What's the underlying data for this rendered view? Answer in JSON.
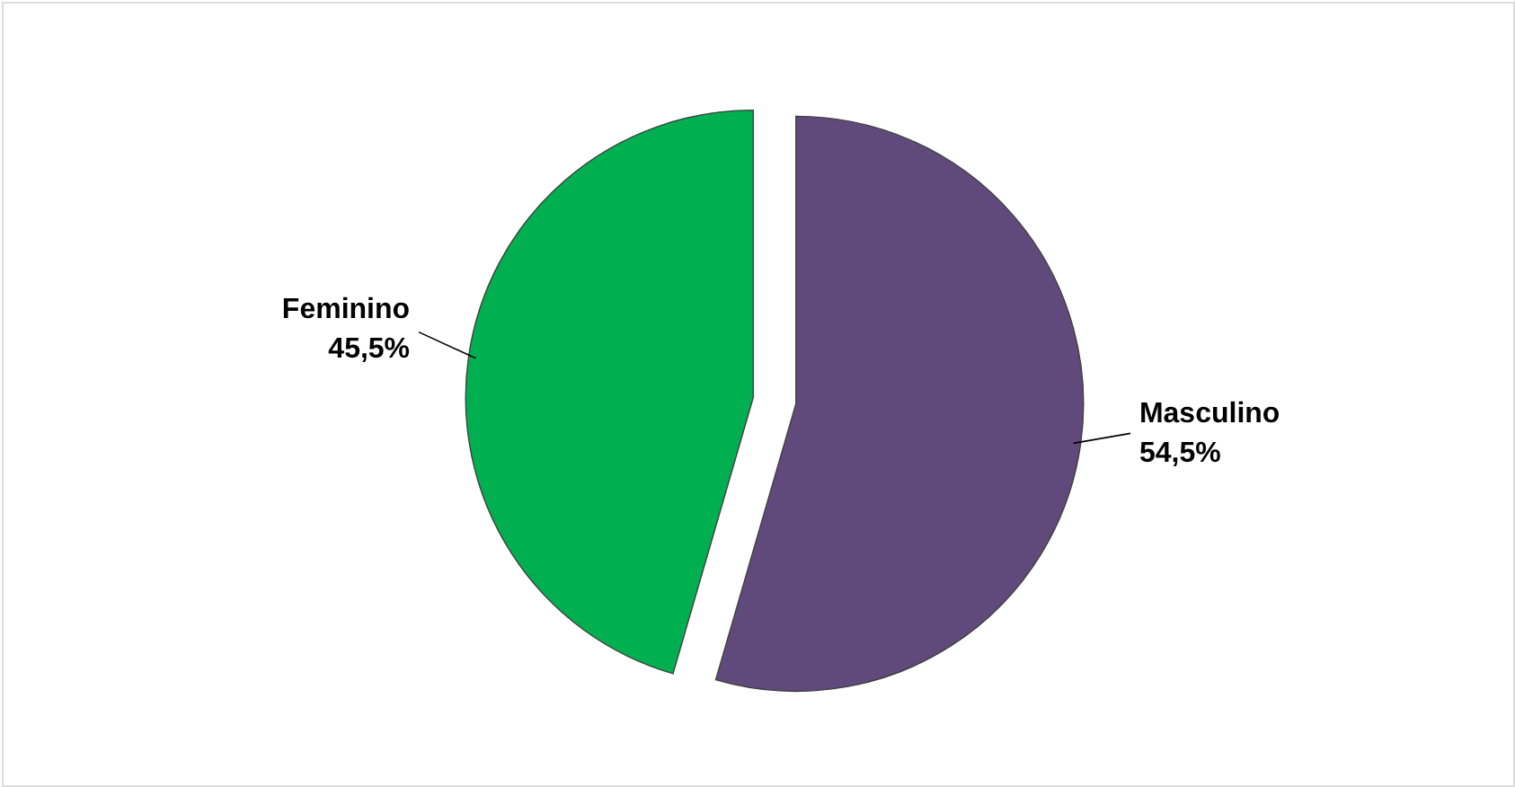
{
  "chart_data": {
    "type": "pie",
    "categories": [
      "Masculino",
      "Feminino"
    ],
    "values": [
      54.5,
      45.5
    ],
    "colors": [
      "#604a7b",
      "#00b050"
    ],
    "value_labels": [
      "54,5%",
      "45,5%"
    ],
    "legend": false
  }
}
